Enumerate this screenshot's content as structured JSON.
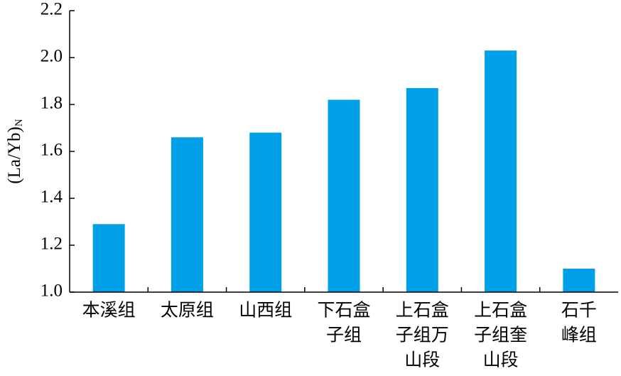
{
  "chart_data": {
    "type": "bar",
    "y_label": "(La/Yb)",
    "y_label_sub": "N",
    "categories": [
      [
        "本溪组"
      ],
      [
        "太原组"
      ],
      [
        "山西组"
      ],
      [
        "下石盒",
        "子组"
      ],
      [
        "上石盒",
        "子组万",
        "山段"
      ],
      [
        "上石盒",
        "子组奎",
        "山段"
      ],
      [
        "石千",
        "峰组"
      ]
    ],
    "values": [
      1.29,
      1.66,
      1.68,
      1.82,
      1.87,
      2.03,
      1.1
    ],
    "color": "#00a0e9",
    "ylim": [
      1.0,
      2.2
    ],
    "yticks": [
      {
        "value": 1.0,
        "label": "1.0"
      },
      1.2,
      1.4,
      1.6,
      1.8,
      {
        "value": 2.0,
        "label": "2.0"
      },
      2.2
    ],
    "grid": false
  }
}
